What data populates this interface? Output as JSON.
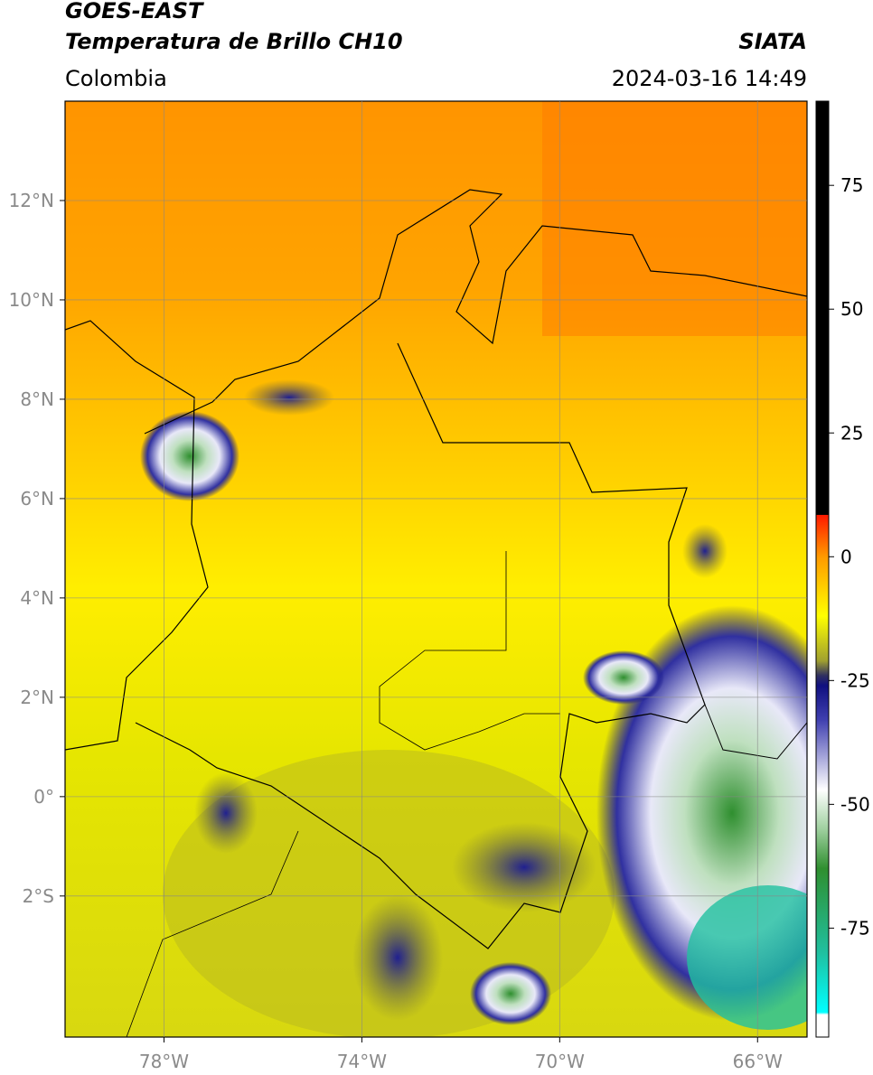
{
  "header": {
    "satellite": "GOES-EAST",
    "product": "Temperatura de Brillo CH10",
    "source": "SIATA",
    "region": "Colombia",
    "datetime": "2024-03-16 14:49"
  },
  "map": {
    "xlim": [
      -80,
      -65
    ],
    "ylim": [
      -4.84,
      14
    ],
    "xticks": [
      {
        "value": -78,
        "label": "78°W"
      },
      {
        "value": -74,
        "label": "74°W"
      },
      {
        "value": -70,
        "label": "70°W"
      },
      {
        "value": -66,
        "label": "66°W"
      }
    ],
    "yticks": [
      {
        "value": 12,
        "label": "12°N"
      },
      {
        "value": 10,
        "label": "10°N"
      },
      {
        "value": 8,
        "label": "8°N"
      },
      {
        "value": 6,
        "label": "6°N"
      },
      {
        "value": 4,
        "label": "4°N"
      },
      {
        "value": 2,
        "label": "2°N"
      },
      {
        "value": 0,
        "label": "0°"
      },
      {
        "value": -2,
        "label": "2°S"
      }
    ],
    "grid": true
  },
  "colorbar": {
    "lim": [
      -97,
      92
    ],
    "ticks": [
      75,
      50,
      25,
      0,
      -25,
      -50,
      -75
    ],
    "stops": [
      [
        92,
        "#000000"
      ],
      [
        8.5,
        "#000000"
      ],
      [
        8.4,
        "#ff1a00"
      ],
      [
        0,
        "#ff9a00"
      ],
      [
        -12,
        "#ffff00"
      ],
      [
        -21,
        "#a0a030"
      ],
      [
        -24,
        "#303060"
      ],
      [
        -26,
        "#101080"
      ],
      [
        -33,
        "#4040b0"
      ],
      [
        -47,
        "#ffffff"
      ],
      [
        -55,
        "#9fd09f"
      ],
      [
        -63,
        "#2f8f2f"
      ],
      [
        -80,
        "#20c0a0"
      ],
      [
        -92,
        "#00ffff"
      ],
      [
        -92.5,
        "#ffffff"
      ],
      [
        -97,
        "#ffffff"
      ]
    ]
  }
}
